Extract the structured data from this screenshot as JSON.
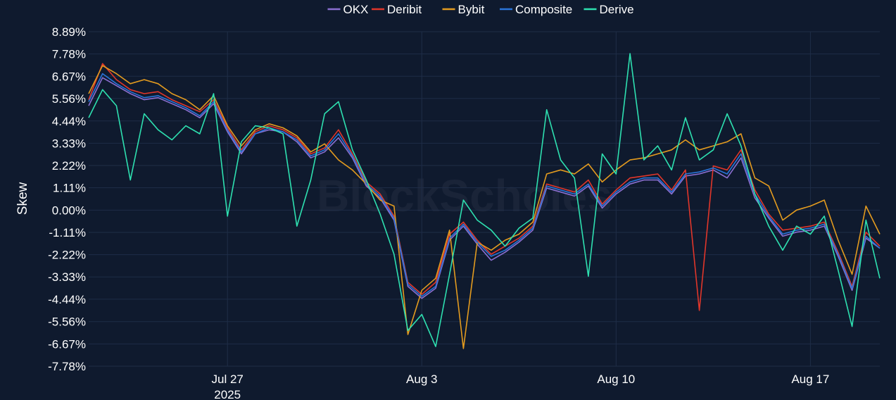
{
  "chart_data": {
    "type": "line",
    "title": "",
    "xlabel": "",
    "ylabel": "Skew",
    "watermark": "BlockScholes",
    "x_range": [
      "2025-07-22",
      "2025-08-19T12:00"
    ],
    "ylim": [
      -7.78,
      8.89
    ],
    "y_ticks": [
      "8.89%",
      "7.78%",
      "6.67%",
      "5.56%",
      "4.44%",
      "3.33%",
      "2.22%",
      "1.11%",
      "0.00%",
      "-1.11%",
      "-2.22%",
      "-3.33%",
      "-4.44%",
      "-5.56%",
      "-6.67%",
      "-7.78%"
    ],
    "y_tick_values": [
      8.89,
      7.78,
      6.67,
      5.56,
      4.44,
      3.33,
      2.22,
      1.11,
      0.0,
      -1.11,
      -2.22,
      -3.33,
      -4.44,
      -5.56,
      -6.67,
      -7.78
    ],
    "x_ticks": [
      {
        "date": "2025-07-27",
        "label": "Jul 27",
        "sublabel": "2025"
      },
      {
        "date": "2025-08-03",
        "label": "Aug 3",
        "sublabel": ""
      },
      {
        "date": "2025-08-10",
        "label": "Aug 10",
        "sublabel": ""
      },
      {
        "date": "2025-08-17",
        "label": "Aug 17",
        "sublabel": ""
      }
    ],
    "grid": true,
    "legend_position": "top-center",
    "series_dates": [
      "2025-07-22",
      "2025-07-22T12:00",
      "2025-07-23",
      "2025-07-23T12:00",
      "2025-07-24",
      "2025-07-24T12:00",
      "2025-07-25",
      "2025-07-25T12:00",
      "2025-07-26",
      "2025-07-26T12:00",
      "2025-07-27",
      "2025-07-27T12:00",
      "2025-07-28",
      "2025-07-28T12:00",
      "2025-07-29",
      "2025-07-29T12:00",
      "2025-07-30",
      "2025-07-30T12:00",
      "2025-07-31",
      "2025-07-31T12:00",
      "2025-08-01",
      "2025-08-01T12:00",
      "2025-08-02",
      "2025-08-02T12:00",
      "2025-08-03",
      "2025-08-03T12:00",
      "2025-08-04",
      "2025-08-04T12:00",
      "2025-08-05",
      "2025-08-05T12:00",
      "2025-08-06",
      "2025-08-06T12:00",
      "2025-08-07",
      "2025-08-07T12:00",
      "2025-08-08",
      "2025-08-08T12:00",
      "2025-08-09",
      "2025-08-09T12:00",
      "2025-08-10",
      "2025-08-10T12:00",
      "2025-08-11",
      "2025-08-11T12:00",
      "2025-08-12",
      "2025-08-12T12:00",
      "2025-08-13",
      "2025-08-13T12:00",
      "2025-08-14",
      "2025-08-14T12:00",
      "2025-08-15",
      "2025-08-15T12:00",
      "2025-08-16",
      "2025-08-16T12:00",
      "2025-08-17",
      "2025-08-17T12:00",
      "2025-08-18",
      "2025-08-18T12:00",
      "2025-08-19",
      "2025-08-19T12:00"
    ],
    "series": [
      {
        "name": "OKX",
        "color": "#8a6fd1",
        "values": [
          5.2,
          6.6,
          6.2,
          5.8,
          5.5,
          5.6,
          5.3,
          5.0,
          4.6,
          5.3,
          3.9,
          2.8,
          3.8,
          4.0,
          3.9,
          3.4,
          2.6,
          2.9,
          3.6,
          2.6,
          1.2,
          0.6,
          -0.5,
          -3.8,
          -4.4,
          -3.9,
          -1.5,
          -0.8,
          -1.7,
          -2.5,
          -2.1,
          -1.6,
          -1.0,
          1.1,
          0.9,
          0.7,
          1.2,
          0.1,
          0.8,
          1.3,
          1.5,
          1.5,
          0.8,
          1.7,
          1.8,
          2.0,
          1.6,
          2.6,
          0.6,
          -0.4,
          -1.3,
          -1.1,
          -1.0,
          -0.8,
          -2.3,
          -4.0,
          -1.4,
          -1.9
        ]
      },
      {
        "name": "Deribit",
        "color": "#e0362a",
        "values": [
          5.5,
          7.3,
          6.5,
          6.0,
          5.8,
          5.9,
          5.5,
          5.2,
          4.9,
          5.5,
          4.1,
          3.0,
          3.9,
          4.2,
          4.0,
          3.6,
          2.8,
          3.1,
          4.0,
          2.8,
          1.4,
          0.8,
          -0.3,
          -3.6,
          -4.2,
          -3.6,
          -1.2,
          -0.6,
          -1.5,
          -2.2,
          -1.8,
          -1.4,
          -0.8,
          1.3,
          1.1,
          0.9,
          1.5,
          0.3,
          1.0,
          1.6,
          1.7,
          1.8,
          1.0,
          2.0,
          -5.0,
          2.2,
          2.0,
          3.0,
          1.0,
          -0.2,
          -1.0,
          -0.9,
          -0.8,
          -0.6,
          -2.1,
          -3.8,
          -1.1,
          -1.8
        ]
      },
      {
        "name": "Bybit",
        "color": "#e39b1f",
        "values": [
          5.8,
          7.2,
          6.8,
          6.3,
          6.5,
          6.3,
          5.8,
          5.5,
          5.0,
          5.7,
          4.2,
          3.2,
          4.0,
          4.3,
          4.1,
          3.7,
          2.9,
          3.3,
          2.5,
          2.0,
          1.3,
          0.5,
          0.2,
          -6.2,
          -4.0,
          -3.4,
          -1.0,
          -6.9,
          -1.6,
          -2.0,
          -1.5,
          -1.2,
          -0.6,
          1.8,
          2.0,
          1.8,
          2.3,
          1.4,
          2.0,
          2.5,
          2.6,
          2.8,
          3.0,
          3.5,
          3.0,
          3.2,
          3.4,
          3.8,
          1.6,
          1.2,
          -0.5,
          0.0,
          0.2,
          0.5,
          -1.5,
          -3.2,
          0.2,
          -1.2
        ]
      },
      {
        "name": "Composite",
        "color": "#2a74d8",
        "values": [
          5.4,
          6.8,
          6.3,
          5.9,
          5.6,
          5.7,
          5.4,
          5.1,
          4.7,
          5.4,
          4.0,
          2.9,
          3.8,
          4.1,
          3.9,
          3.5,
          2.7,
          3.0,
          3.8,
          2.7,
          1.3,
          0.7,
          -0.4,
          -3.7,
          -4.3,
          -3.8,
          -1.4,
          -0.7,
          -1.6,
          -2.3,
          -2.0,
          -1.5,
          -0.9,
          1.2,
          1.0,
          0.8,
          1.3,
          0.2,
          0.9,
          1.4,
          1.6,
          1.6,
          0.9,
          1.8,
          1.9,
          2.1,
          1.8,
          2.8,
          0.8,
          -0.3,
          -1.2,
          -1.0,
          -0.9,
          -0.7,
          -2.2,
          -3.9,
          -1.3,
          -1.9
        ]
      },
      {
        "name": "Derive",
        "color": "#2ee0b0",
        "values": [
          4.6,
          6.0,
          5.2,
          1.5,
          4.8,
          4.0,
          3.5,
          4.2,
          3.8,
          5.8,
          -0.3,
          3.4,
          4.2,
          4.1,
          3.8,
          -0.8,
          1.5,
          4.8,
          5.4,
          3.0,
          1.5,
          -0.2,
          -2.2,
          -6.0,
          -5.2,
          -6.8,
          -3.2,
          0.5,
          -0.5,
          -1.0,
          -1.8,
          -0.9,
          -0.4,
          5.0,
          2.5,
          1.6,
          -3.3,
          2.8,
          1.8,
          7.8,
          2.5,
          3.2,
          2.0,
          4.6,
          2.5,
          3.0,
          4.8,
          3.2,
          0.8,
          -0.8,
          -2.0,
          -0.8,
          -1.2,
          -0.3,
          -3.0,
          -5.8,
          -0.5,
          -3.4
        ]
      }
    ]
  }
}
